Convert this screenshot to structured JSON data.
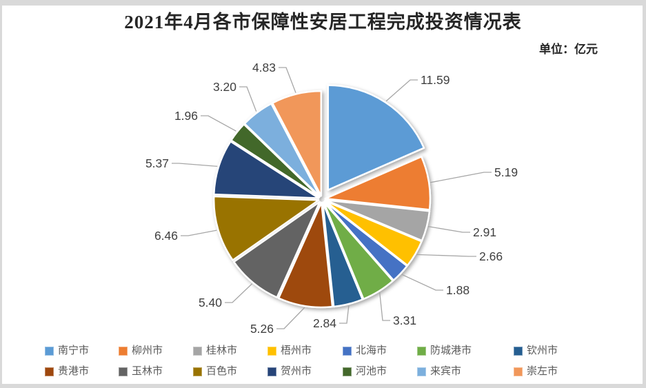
{
  "header": {
    "title": "2021年4月各市保障性安居工程完成投资情况表",
    "unit_label": "单位：亿元"
  },
  "chart_data": {
    "type": "pie",
    "title": "2021年4月各市保障性安居工程完成投资情况表",
    "unit": "亿元",
    "categories": [
      "南宁市",
      "柳州市",
      "桂林市",
      "梧州市",
      "北海市",
      "防城港市",
      "钦州市",
      "贵港市",
      "玉林市",
      "百色市",
      "贺州市",
      "河池市",
      "来宾市",
      "崇左市"
    ],
    "values": [
      11.59,
      5.19,
      2.91,
      2.66,
      1.88,
      3.31,
      2.84,
      5.26,
      5.4,
      6.46,
      5.37,
      1.96,
      3.2,
      4.83
    ],
    "colors": [
      "#5B9BD5",
      "#ED7D31",
      "#A5A5A5",
      "#FFC000",
      "#4472C4",
      "#70AD47",
      "#255E91",
      "#9E480E",
      "#636363",
      "#997300",
      "#264478",
      "#43682B",
      "#7CAFDD",
      "#F1975A"
    ],
    "total": 62.86,
    "start_angle_deg": 0,
    "direction": "clockwise",
    "exploded_index": 0,
    "data_labels": "outside with leader lines, 2 decimals",
    "legend_position": "bottom, two rows",
    "label_color": "#404040",
    "leader_line_color": "#A6A6A6"
  }
}
